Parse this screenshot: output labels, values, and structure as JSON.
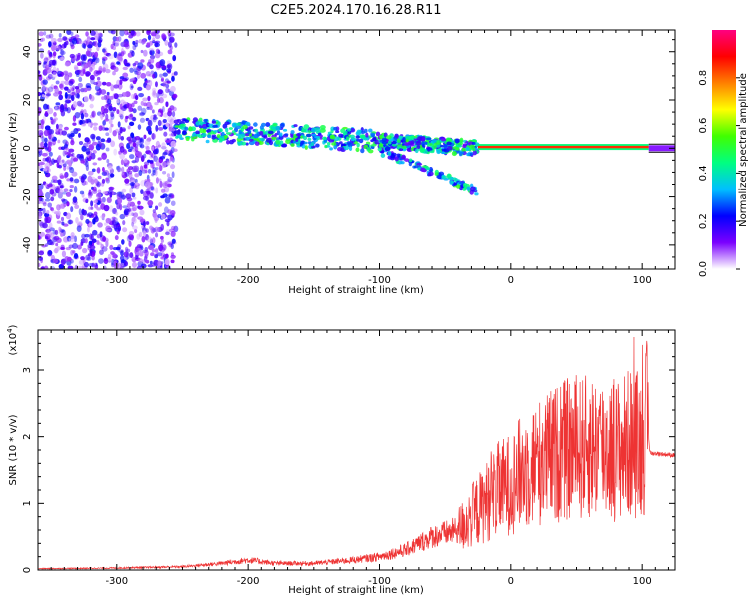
{
  "title": "C2E5.2024.170.16.28.R11",
  "chart_data": [
    {
      "type": "heatmap",
      "xlabel": "Height of straight line (km)",
      "ylabel": "Frequency (Hz)",
      "xlim": [
        -360,
        125
      ],
      "ylim": [
        -50,
        49
      ],
      "x_ticks": [
        -300,
        -200,
        -100,
        0,
        100
      ],
      "y_ticks": [
        -40,
        -20,
        0,
        20,
        40
      ],
      "colorbar": {
        "label": "Normalized spectral amplitude",
        "range": [
          0,
          1
        ],
        "ticks": [
          "0.0",
          "0.2",
          "0.4",
          "0.6",
          "0.8"
        ],
        "tick_values": [
          0,
          0.2,
          0.4,
          0.6,
          0.8
        ],
        "colors": [
          "#ffffff",
          "#7b00ff",
          "#0000ff",
          "#00bfff",
          "#00ff80",
          "#40ff00",
          "#ffff00",
          "#ff8000",
          "#ff0000",
          "#ff0080"
        ]
      },
      "regions": [
        {
          "x": [
            -360,
            -255
          ],
          "f": [
            -50,
            49
          ],
          "amplitude": 0.1,
          "kind": "noise"
        },
        {
          "x": [
            -255,
            -100
          ],
          "f": [
            -2,
            12
          ],
          "amplitude": 0.4,
          "kind": "band"
        },
        {
          "x": [
            -100,
            -25
          ],
          "f": [
            -18,
            8
          ],
          "amplitude": 0.35,
          "kind": "band"
        },
        {
          "x": [
            -25,
            105
          ],
          "f": [
            -1,
            2
          ],
          "amplitude": 1.0,
          "kind": "line"
        },
        {
          "x": [
            105,
            125
          ],
          "f": [
            -1,
            1
          ],
          "amplitude": 0.05,
          "kind": "line"
        }
      ]
    },
    {
      "type": "line",
      "xlabel": "Height of straight line (km)",
      "ylabel": "SNR (10 * v/v)",
      "y_multiplier": "(x10",
      "y_multiplier_exp": "4",
      "xlim": [
        -360,
        125
      ],
      "ylim": [
        0,
        3.6
      ],
      "x_ticks": [
        -300,
        -200,
        -100,
        0,
        100
      ],
      "y_ticks": [
        0,
        1,
        2,
        3
      ],
      "color": "#ee3333",
      "series": [
        {
          "x": [
            -360,
            -300,
            -250,
            -220,
            -200,
            -180,
            -150,
            -120,
            -100,
            -80,
            -60,
            -40,
            -30,
            -20,
            -10,
            0,
            10,
            20,
            30,
            40,
            50,
            60,
            70,
            80,
            90,
            100,
            104,
            106,
            110,
            125
          ],
          "y": [
            0.02,
            0.03,
            0.05,
            0.1,
            0.15,
            0.1,
            0.1,
            0.15,
            0.2,
            0.3,
            0.5,
            0.6,
            0.8,
            1.0,
            1.2,
            1.3,
            1.5,
            1.6,
            1.7,
            1.8,
            1.8,
            1.85,
            1.85,
            1.8,
            1.9,
            1.9,
            2.2,
            1.75,
            1.75,
            1.72
          ]
        }
      ]
    }
  ]
}
